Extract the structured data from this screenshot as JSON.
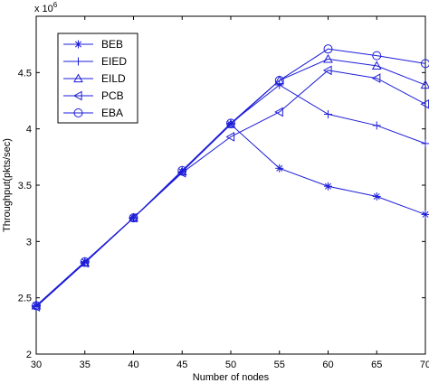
{
  "chart_data": {
    "type": "line",
    "title": "",
    "xlabel": "Number of nodes",
    "ylabel": "Throughput(pkts/sec)",
    "y_multiplier_label": "x 10",
    "y_multiplier_exponent": "6",
    "xlim": [
      30,
      70
    ],
    "ylim": [
      2,
      5
    ],
    "x_ticks": [
      30,
      35,
      40,
      45,
      50,
      55,
      60,
      65,
      70
    ],
    "y_ticks": [
      2,
      2.5,
      3,
      3.5,
      4,
      4.5
    ],
    "y_tick_labels": [
      "2",
      "2.5",
      "3",
      "3.5",
      "4",
      "4.5"
    ],
    "grid": false,
    "legend_position": "top-left",
    "line_color": "#1c1cd8",
    "x": [
      30,
      35,
      40,
      45,
      50,
      55,
      60,
      65,
      70
    ],
    "series": [
      {
        "name": "BEB",
        "marker": "asterisk",
        "values": [
          2.43,
          2.82,
          3.21,
          3.62,
          4.04,
          3.65,
          3.49,
          3.4,
          3.24
        ]
      },
      {
        "name": "EIED",
        "marker": "plus",
        "values": [
          2.42,
          2.81,
          3.21,
          3.62,
          4.05,
          4.39,
          4.13,
          4.03,
          3.87
        ]
      },
      {
        "name": "EILD",
        "marker": "triangle-up",
        "values": [
          2.43,
          2.81,
          3.21,
          3.62,
          4.04,
          4.43,
          4.62,
          4.56,
          4.39
        ]
      },
      {
        "name": "PCB",
        "marker": "triangle-left",
        "values": [
          2.42,
          2.81,
          3.21,
          3.61,
          3.93,
          4.15,
          4.52,
          4.45,
          4.22
        ]
      },
      {
        "name": "EBA",
        "marker": "circle",
        "values": [
          2.43,
          2.82,
          3.21,
          3.63,
          4.05,
          4.43,
          4.71,
          4.65,
          4.58
        ]
      }
    ]
  }
}
